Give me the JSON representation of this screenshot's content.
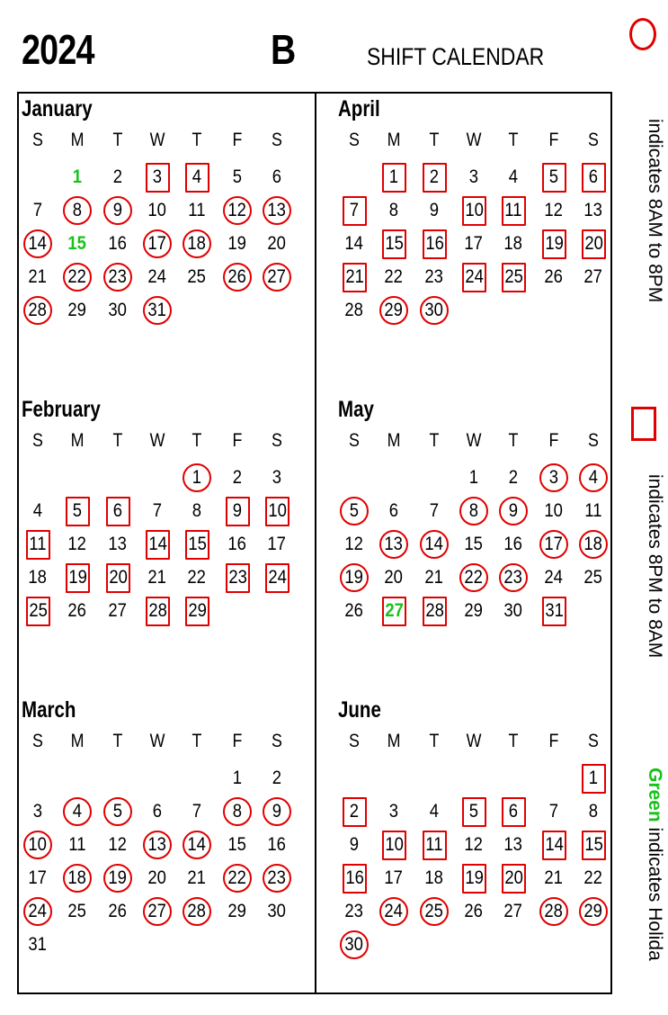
{
  "header": {
    "year": "2024",
    "team": "B",
    "title": "SHIFT CALENDAR"
  },
  "weekdays": [
    "S",
    "M",
    "T",
    "W",
    "T",
    "F",
    "S"
  ],
  "legend": {
    "circle_text": "indicates 8AM to 8PM",
    "square_text": "indicates 8PM to 8AM",
    "holiday_word": "Green",
    "holiday_text": " indicates Holida"
  },
  "colors": {
    "shift_mark": "#e00000",
    "holiday": "#17c21a"
  },
  "months": [
    {
      "name": "January",
      "start": 1,
      "days": 31,
      "circles": [
        8,
        9,
        12,
        13,
        14,
        17,
        18,
        22,
        23,
        26,
        27,
        28,
        31
      ],
      "squares": [
        3,
        4
      ],
      "holidays": [
        1,
        15
      ]
    },
    {
      "name": "February",
      "start": 4,
      "days": 29,
      "circles": [
        1
      ],
      "squares": [
        5,
        6,
        9,
        10,
        11,
        14,
        15,
        19,
        20,
        23,
        24,
        25,
        28,
        29
      ],
      "holidays": []
    },
    {
      "name": "March",
      "start": 5,
      "days": 31,
      "circles": [
        4,
        5,
        8,
        9,
        10,
        13,
        14,
        18,
        19,
        22,
        23,
        24,
        27,
        28
      ],
      "squares": [],
      "holidays": []
    },
    {
      "name": "April",
      "start": 1,
      "days": 30,
      "circles": [
        29,
        30
      ],
      "squares": [
        1,
        2,
        5,
        6,
        7,
        10,
        11,
        15,
        16,
        19,
        20,
        21,
        24,
        25
      ],
      "holidays": []
    },
    {
      "name": "May",
      "start": 3,
      "days": 31,
      "circles": [
        3,
        4,
        5,
        8,
        9,
        13,
        14,
        17,
        18,
        19,
        22,
        23
      ],
      "squares": [
        27,
        28,
        31
      ],
      "holidays": [
        27
      ]
    },
    {
      "name": "June",
      "start": 6,
      "days": 30,
      "circles": [
        24,
        25,
        28,
        29,
        30
      ],
      "squares": [
        1,
        2,
        5,
        6,
        10,
        11,
        14,
        15,
        16,
        19,
        20
      ],
      "holidays": []
    }
  ]
}
